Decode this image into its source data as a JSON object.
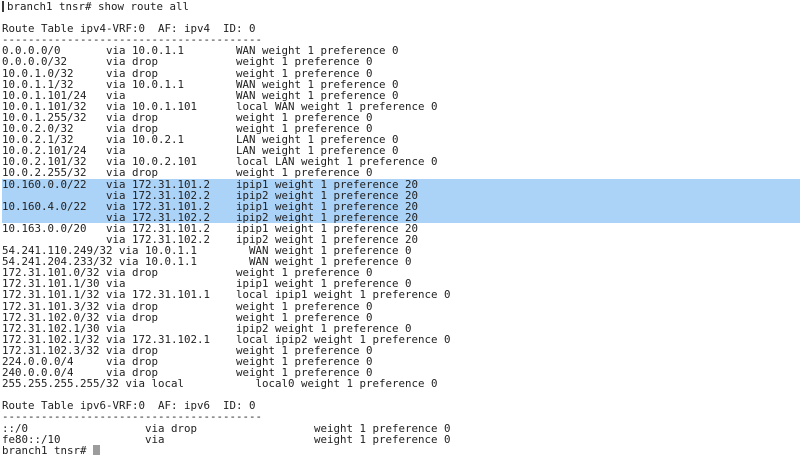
{
  "colors": {
    "background": "#ffffff",
    "text": "#1f1f1f",
    "selection": "#abd2f7",
    "cursor": "#9c9c9c"
  },
  "session": {
    "command_line": "branch1 tnsr# show route all",
    "final_prompt": "branch1 tnsr# "
  },
  "route_tables": [
    {
      "title": "Route Table ipv4-VRF:0  AF: ipv4  ID: 0",
      "divider": "----------------------------------------",
      "columns": {
        "prefix_width": 16,
        "via_width": 20
      },
      "routes": [
        {
          "prefix": "0.0.0.0/0",
          "via": "via 10.0.1.1",
          "flags": "WAN weight 1 preference 0",
          "selected": false
        },
        {
          "prefix": "0.0.0.0/32",
          "via": "via drop",
          "flags": "weight 1 preference 0",
          "selected": false
        },
        {
          "prefix": "10.0.1.0/32",
          "via": "via drop",
          "flags": "weight 1 preference 0",
          "selected": false
        },
        {
          "prefix": "10.0.1.1/32",
          "via": "via 10.0.1.1",
          "flags": "WAN weight 1 preference 0",
          "selected": false
        },
        {
          "prefix": "10.0.1.101/24",
          "via": "via",
          "flags": "WAN weight 1 preference 0",
          "selected": false
        },
        {
          "prefix": "10.0.1.101/32",
          "via": "via 10.0.1.101",
          "flags": "local WAN weight 1 preference 0",
          "selected": false
        },
        {
          "prefix": "10.0.1.255/32",
          "via": "via drop",
          "flags": "weight 1 preference 0",
          "selected": false
        },
        {
          "prefix": "10.0.2.0/32",
          "via": "via drop",
          "flags": "weight 1 preference 0",
          "selected": false
        },
        {
          "prefix": "10.0.2.1/32",
          "via": "via 10.0.2.1",
          "flags": "LAN weight 1 preference 0",
          "selected": false
        },
        {
          "prefix": "10.0.2.101/24",
          "via": "via",
          "flags": "LAN weight 1 preference 0",
          "selected": false
        },
        {
          "prefix": "10.0.2.101/32",
          "via": "via 10.0.2.101",
          "flags": "local LAN weight 1 preference 0",
          "selected": false
        },
        {
          "prefix": "10.0.2.255/32",
          "via": "via drop",
          "flags": "weight 1 preference 0",
          "selected": false
        },
        {
          "prefix": "10.160.0.0/22",
          "via": "via 172.31.101.2",
          "flags": "ipip1 weight 1 preference 20",
          "selected": true
        },
        {
          "prefix": "",
          "via": "via 172.31.102.2",
          "flags": "ipip2 weight 1 preference 20",
          "selected": true
        },
        {
          "prefix": "10.160.4.0/22",
          "via": "via 172.31.101.2",
          "flags": "ipip1 weight 1 preference 20",
          "selected": true
        },
        {
          "prefix": "",
          "via": "via 172.31.102.2",
          "flags": "ipip2 weight 1 preference 20",
          "selected": true
        },
        {
          "prefix": "10.163.0.0/20",
          "via": "via 172.31.101.2",
          "flags": "ipip1 weight 1 preference 20",
          "selected": false
        },
        {
          "prefix": "",
          "via": "via 172.31.102.2",
          "flags": "ipip2 weight 1 preference 20",
          "selected": false
        },
        {
          "prefix": "54.241.110.249/32",
          "via": "via 10.0.1.1",
          "flags": "WAN weight 1 preference 0",
          "selected": false
        },
        {
          "prefix": "54.241.204.233/32",
          "via": "via 10.0.1.1",
          "flags": "WAN weight 1 preference 0",
          "selected": false
        },
        {
          "prefix": "172.31.101.0/32",
          "via": "via drop",
          "flags": "weight 1 preference 0",
          "selected": false
        },
        {
          "prefix": "172.31.101.1/30",
          "via": "via",
          "flags": "ipip1 weight 1 preference 0",
          "selected": false
        },
        {
          "prefix": "172.31.101.1/32",
          "via": "via 172.31.101.1",
          "flags": "local ipip1 weight 1 preference 0",
          "selected": false
        },
        {
          "prefix": "172.31.101.3/32",
          "via": "via drop",
          "flags": "weight 1 preference 0",
          "selected": false
        },
        {
          "prefix": "172.31.102.0/32",
          "via": "via drop",
          "flags": "weight 1 preference 0",
          "selected": false
        },
        {
          "prefix": "172.31.102.1/30",
          "via": "via",
          "flags": "ipip2 weight 1 preference 0",
          "selected": false
        },
        {
          "prefix": "172.31.102.1/32",
          "via": "via 172.31.102.1",
          "flags": "local ipip2 weight 1 preference 0",
          "selected": false
        },
        {
          "prefix": "172.31.102.3/32",
          "via": "via drop",
          "flags": "weight 1 preference 0",
          "selected": false
        },
        {
          "prefix": "224.0.0.0/4",
          "via": "via drop",
          "flags": "weight 1 preference 0",
          "selected": false
        },
        {
          "prefix": "240.0.0.0/4",
          "via": "via drop",
          "flags": "weight 1 preference 0",
          "selected": false
        },
        {
          "prefix": "255.255.255.255/32",
          "via": "via local",
          "flags": "local0 weight 1 preference 0",
          "selected": false
        }
      ]
    },
    {
      "title": "Route Table ipv6-VRF:0  AF: ipv6  ID: 0",
      "divider": "----------------------------------------",
      "columns": {
        "prefix_width": 22,
        "via_width": 26
      },
      "routes": [
        {
          "prefix": "::/0",
          "via": "via drop",
          "flags": "weight 1 preference 0",
          "selected": false
        },
        {
          "prefix": "fe80::/10",
          "via": "via",
          "flags": "weight 1 preference 0",
          "selected": false
        }
      ]
    }
  ]
}
